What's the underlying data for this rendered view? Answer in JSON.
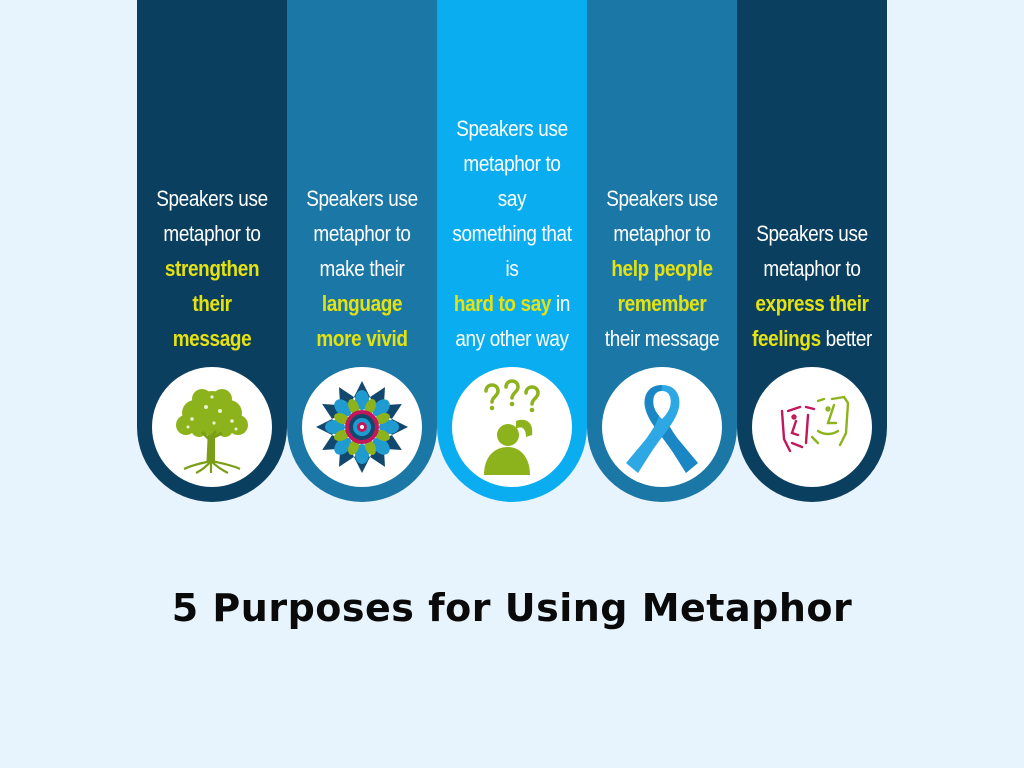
{
  "title": "5 Purposes for Using Metaphor",
  "colors": {
    "dark_navy": "#0b3f5f",
    "mid_blue": "#1b77a5",
    "bright_blue": "#0aaef0",
    "highlight_yellow": "#e5e20f",
    "background": "#e8f4fd"
  },
  "purposes": [
    {
      "lines": [
        {
          "parts": [
            {
              "t": "Speakers use",
              "hl": false
            }
          ]
        },
        {
          "parts": [
            {
              "t": "metaphor to",
              "hl": false
            }
          ]
        },
        {
          "parts": [
            {
              "t": "strengthen",
              "hl": true
            }
          ]
        },
        {
          "parts": [
            {
              "t": "their message",
              "hl": true
            }
          ]
        }
      ],
      "icon": "tree-icon",
      "color": "#0b3f5f"
    },
    {
      "lines": [
        {
          "parts": [
            {
              "t": "Speakers use",
              "hl": false
            }
          ]
        },
        {
          "parts": [
            {
              "t": "metaphor to",
              "hl": false
            }
          ]
        },
        {
          "parts": [
            {
              "t": "make their",
              "hl": false
            }
          ]
        },
        {
          "parts": [
            {
              "t": "language",
              "hl": true
            }
          ]
        },
        {
          "parts": [
            {
              "t": "more vivid",
              "hl": true
            }
          ]
        }
      ],
      "icon": "mandala-icon",
      "color": "#1b77a5"
    },
    {
      "lines": [
        {
          "parts": [
            {
              "t": "Speakers use",
              "hl": false
            }
          ]
        },
        {
          "parts": [
            {
              "t": "metaphor to say",
              "hl": false
            }
          ]
        },
        {
          "parts": [
            {
              "t": "something that is",
              "hl": false
            }
          ]
        },
        {
          "parts": [
            {
              "t": "hard to say",
              "hl": true
            },
            {
              "t": " in",
              "hl": false
            }
          ]
        },
        {
          "parts": [
            {
              "t": "any other way",
              "hl": false
            }
          ]
        }
      ],
      "icon": "confused-person-icon",
      "color": "#0aaef0"
    },
    {
      "lines": [
        {
          "parts": [
            {
              "t": "Speakers use",
              "hl": false
            }
          ]
        },
        {
          "parts": [
            {
              "t": "metaphor to",
              "hl": false
            }
          ]
        },
        {
          "parts": [
            {
              "t": "help people",
              "hl": true
            }
          ]
        },
        {
          "parts": [
            {
              "t": "remember",
              "hl": true
            }
          ]
        },
        {
          "parts": [
            {
              "t": "their message",
              "hl": false
            }
          ]
        }
      ],
      "icon": "ribbon-icon",
      "color": "#1b77a5"
    },
    {
      "lines": [
        {
          "parts": [
            {
              "t": "Speakers use",
              "hl": false
            }
          ]
        },
        {
          "parts": [
            {
              "t": "metaphor to",
              "hl": false
            }
          ]
        },
        {
          "parts": [
            {
              "t": "express their",
              "hl": true
            }
          ]
        },
        {
          "parts": [
            {
              "t": "feelings",
              "hl": true
            },
            {
              "t": " better",
              "hl": false
            }
          ]
        }
      ],
      "icon": "faces-icon",
      "color": "#0b3f5f"
    }
  ]
}
